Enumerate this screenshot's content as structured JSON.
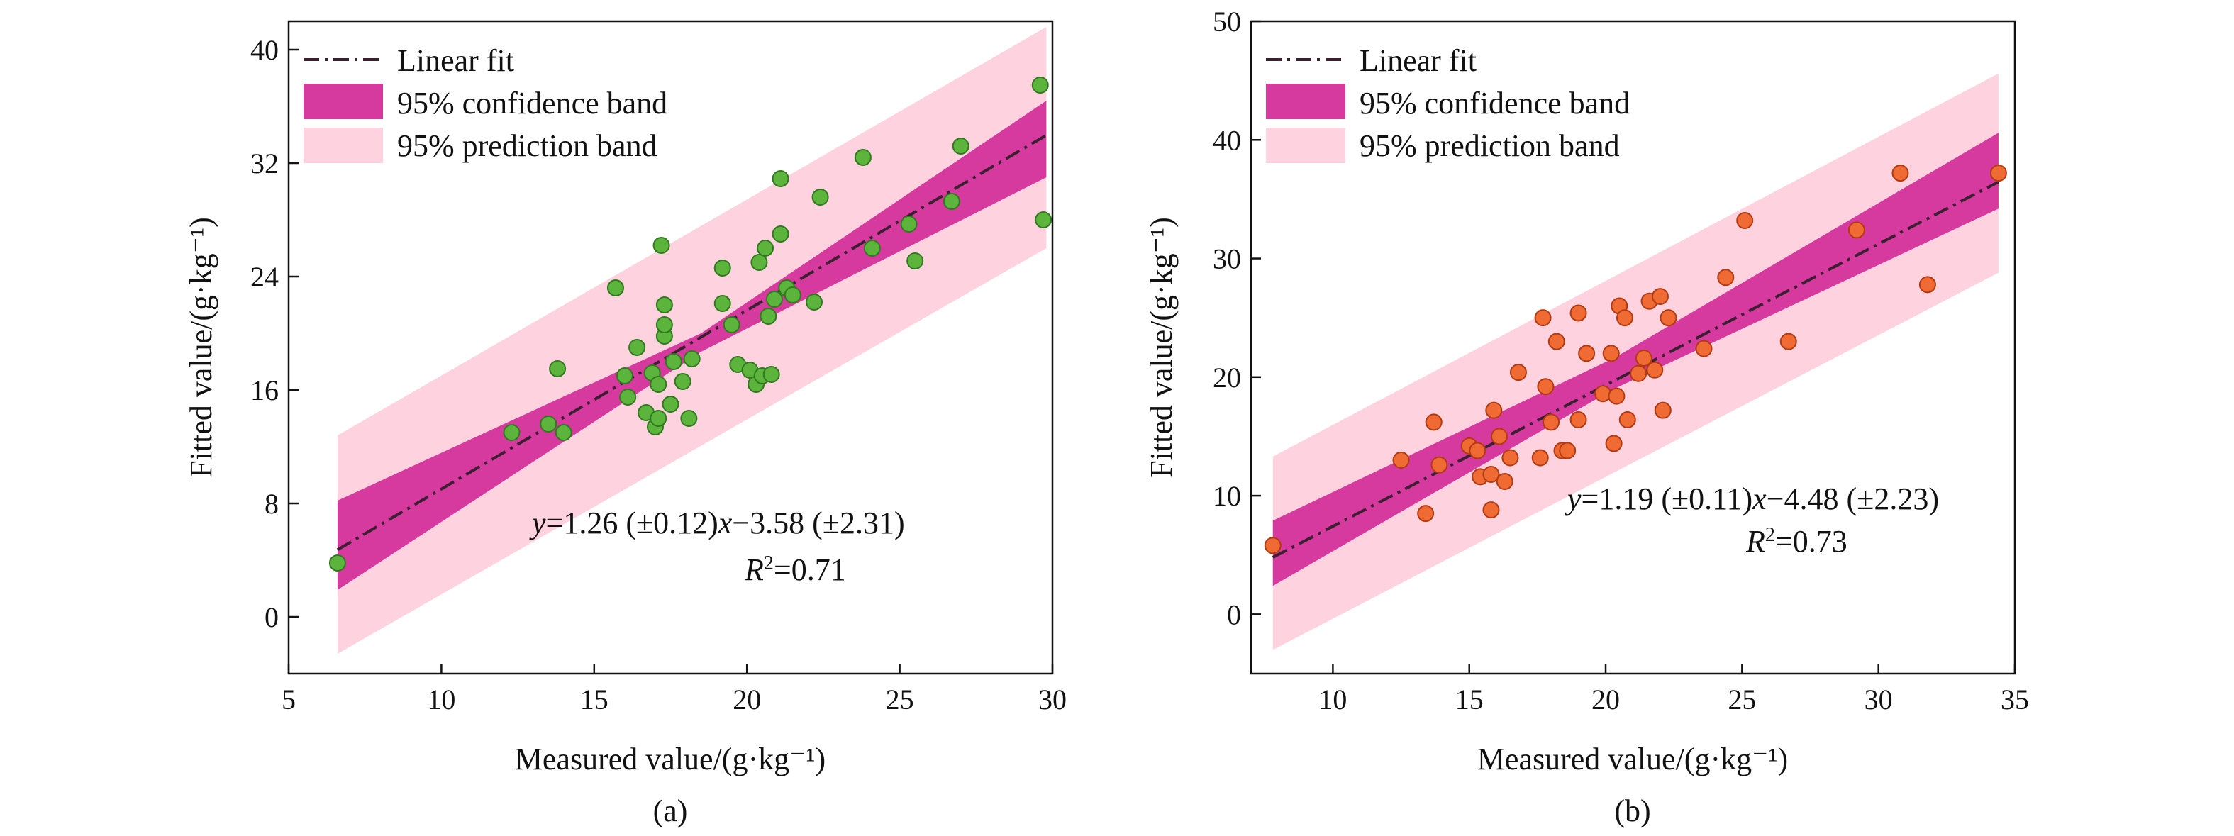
{
  "colors": {
    "prediction_band": "#ffd2e0",
    "confidence_band": "#d63a9e",
    "fit_line": "#3a2030",
    "points_a": "#5cb43c",
    "points_a_edge": "#2f7a1c",
    "points_b": "#f06a34",
    "points_b_edge": "#b23a10"
  },
  "chart_data": [
    {
      "type": "scatter",
      "panel_label": "(a)",
      "xlabel": "Measured value/(g·kg⁻¹)",
      "ylabel": "Fitted value/(g·kg⁻¹)",
      "xlim": [
        5,
        30
      ],
      "ylim": [
        -4,
        42
      ],
      "xticks": [
        5,
        10,
        15,
        20,
        25,
        30
      ],
      "yticks": [
        0,
        8,
        16,
        24,
        32,
        40
      ],
      "legend": [
        "Linear fit",
        "95% confidence band",
        "95% prediction band"
      ],
      "equation": {
        "y": "y",
        "text": "=1.26 (±0.12)",
        "x": "x",
        "rest": "−3.58 (±2.31)"
      },
      "r2": {
        "r": "R",
        "sup": "2",
        "val": "=0.71"
      },
      "fit": {
        "slope": 1.26,
        "intercept": -3.58,
        "x_range": [
          6.6,
          29.8
        ]
      },
      "confidence_band": {
        "x": [
          6.6,
          18.5,
          29.8
        ],
        "lower": [
          1.9,
          18.7,
          31.0
        ],
        "upper": [
          8.2,
          20.0,
          36.4
        ]
      },
      "prediction_band": {
        "x": [
          6.6,
          29.8
        ],
        "lower": [
          -2.6,
          26.0
        ],
        "upper": [
          12.8,
          41.6
        ]
      },
      "points": [
        [
          6.6,
          3.8
        ],
        [
          12.3,
          13.0
        ],
        [
          13.5,
          13.6
        ],
        [
          13.8,
          17.5
        ],
        [
          14.0,
          13.0
        ],
        [
          15.7,
          23.2
        ],
        [
          16.0,
          17.0
        ],
        [
          16.1,
          15.5
        ],
        [
          16.4,
          19.0
        ],
        [
          16.7,
          14.4
        ],
        [
          16.9,
          17.2
        ],
        [
          17.0,
          13.4
        ],
        [
          17.1,
          16.4
        ],
        [
          17.1,
          14.0
        ],
        [
          17.2,
          26.2
        ],
        [
          17.3,
          19.8
        ],
        [
          17.3,
          22.0
        ],
        [
          17.3,
          20.6
        ],
        [
          17.5,
          15.0
        ],
        [
          17.6,
          18.0
        ],
        [
          17.9,
          16.6
        ],
        [
          18.1,
          14.0
        ],
        [
          18.2,
          18.2
        ],
        [
          19.2,
          22.1
        ],
        [
          19.2,
          24.6
        ],
        [
          19.5,
          20.6
        ],
        [
          19.7,
          17.8
        ],
        [
          20.1,
          17.4
        ],
        [
          20.3,
          16.4
        ],
        [
          20.4,
          25.0
        ],
        [
          20.5,
          17.0
        ],
        [
          20.6,
          26.0
        ],
        [
          20.7,
          21.2
        ],
        [
          20.8,
          17.1
        ],
        [
          20.9,
          22.4
        ],
        [
          21.1,
          27.0
        ],
        [
          21.1,
          30.9
        ],
        [
          21.3,
          23.2
        ],
        [
          21.5,
          22.7
        ],
        [
          22.2,
          22.2
        ],
        [
          22.4,
          29.6
        ],
        [
          23.8,
          32.4
        ],
        [
          24.1,
          26.0
        ],
        [
          25.3,
          27.7
        ],
        [
          25.5,
          25.1
        ],
        [
          26.7,
          29.3
        ],
        [
          27.0,
          33.2
        ],
        [
          29.6,
          37.5
        ],
        [
          29.7,
          28.0
        ]
      ]
    },
    {
      "type": "scatter",
      "panel_label": "(b)",
      "xlabel": "Measured value/(g·kg⁻¹)",
      "ylabel": "Fitted value/(g·kg⁻¹)",
      "xlim": [
        7,
        35
      ],
      "ylim": [
        -5,
        50
      ],
      "xticks": [
        10,
        15,
        20,
        25,
        30,
        35
      ],
      "yticks": [
        0,
        10,
        20,
        30,
        40,
        50
      ],
      "legend": [
        "Linear fit",
        "95% confidence band",
        "95% prediction band"
      ],
      "equation": {
        "y": "y",
        "text": "=1.19 (±0.11)",
        "x": "x",
        "rest": "−4.48 (±2.23)"
      },
      "r2": {
        "r": "R",
        "sup": "2",
        "val": "=0.73"
      },
      "fit": {
        "slope": 1.19,
        "intercept": -4.48,
        "x_range": [
          7.8,
          34.4
        ]
      },
      "confidence_band": {
        "x": [
          7.8,
          20.3,
          34.4
        ],
        "lower": [
          2.4,
          19.0,
          34.2
        ],
        "upper": [
          7.9,
          21.6,
          40.6
        ]
      },
      "prediction_band": {
        "x": [
          7.8,
          34.4
        ],
        "lower": [
          -3.0,
          28.8
        ],
        "upper": [
          13.3,
          45.6
        ]
      },
      "points": [
        [
          7.8,
          5.8
        ],
        [
          12.5,
          13.0
        ],
        [
          13.4,
          8.5
        ],
        [
          13.7,
          16.2
        ],
        [
          13.9,
          12.6
        ],
        [
          15.0,
          14.2
        ],
        [
          15.3,
          13.8
        ],
        [
          15.4,
          11.6
        ],
        [
          15.8,
          8.8
        ],
        [
          15.8,
          11.8
        ],
        [
          15.9,
          17.2
        ],
        [
          16.1,
          15.0
        ],
        [
          16.3,
          11.2
        ],
        [
          16.5,
          13.2
        ],
        [
          16.8,
          20.4
        ],
        [
          17.6,
          13.2
        ],
        [
          17.7,
          25.0
        ],
        [
          17.8,
          19.2
        ],
        [
          18.0,
          16.2
        ],
        [
          18.2,
          23.0
        ],
        [
          18.4,
          13.8
        ],
        [
          18.6,
          13.8
        ],
        [
          19.0,
          16.4
        ],
        [
          19.0,
          25.4
        ],
        [
          19.3,
          22.0
        ],
        [
          19.9,
          18.6
        ],
        [
          20.2,
          22.0
        ],
        [
          20.3,
          14.4
        ],
        [
          20.4,
          18.4
        ],
        [
          20.5,
          26.0
        ],
        [
          20.7,
          25.0
        ],
        [
          20.8,
          16.4
        ],
        [
          21.2,
          20.3
        ],
        [
          21.4,
          21.6
        ],
        [
          21.6,
          26.4
        ],
        [
          21.8,
          20.6
        ],
        [
          22.0,
          26.8
        ],
        [
          22.1,
          17.2
        ],
        [
          22.3,
          25.0
        ],
        [
          23.6,
          22.4
        ],
        [
          24.4,
          28.4
        ],
        [
          25.1,
          33.2
        ],
        [
          26.7,
          23.0
        ],
        [
          29.2,
          32.4
        ],
        [
          30.8,
          37.2
        ],
        [
          31.8,
          27.8
        ],
        [
          34.4,
          37.2
        ]
      ]
    }
  ]
}
